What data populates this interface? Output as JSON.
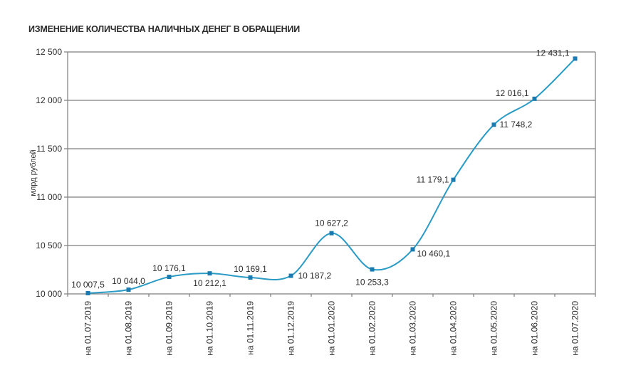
{
  "title": "ИЗМЕНЕНИЕ КОЛИЧЕСТВА НАЛИЧНЫХ ДЕНЕГ В ОБРАЩЕНИИ",
  "colors": {
    "line": "#2a9bc4",
    "marker": "#1a7bb0",
    "grid": "#7d7d7d"
  },
  "chart_data": {
    "type": "line",
    "title": "ИЗМЕНЕНИЕ КОЛИЧЕСТВА НАЛИЧНЫХ ДЕНЕГ В ОБРАЩЕНИИ",
    "xlabel": "",
    "ylabel": "млрд рублей",
    "ylim": [
      10000,
      12500
    ],
    "yticks": [
      10000,
      10500,
      11000,
      11500,
      12000,
      12500
    ],
    "ytick_labels": [
      "10 000",
      "10 500",
      "11 000",
      "11 500",
      "12 000",
      "12 500"
    ],
    "grid": true,
    "smooth": true,
    "categories": [
      "на 01.07.2019",
      "на 01.08.2019",
      "на 01.09.2019",
      "на 01.10.2019",
      "на 01.11.2019",
      "на 01.12.2019",
      "на 01.01.2020",
      "на 01.02.2020",
      "на 01.03.2020",
      "на 01.04.2020",
      "на 01.05.2020",
      "на 01.06.2020",
      "на 01.07.2020"
    ],
    "values": [
      10007.5,
      10044.0,
      10176.1,
      10212.1,
      10169.1,
      10187.2,
      10627.2,
      10253.3,
      10460.1,
      11179.1,
      11748.2,
      12016.1,
      12431.1
    ],
    "value_labels": [
      "10 007,5",
      "10 044,0",
      "10 176,1",
      "10 212,1",
      "10 169,1",
      "10 187,2",
      "10 627,2",
      "10 253,3",
      "10 460,1",
      "11 179,1",
      "11 748,2",
      "12 016,1",
      "12 431,1"
    ],
    "label_pos": [
      [
        0,
        -8,
        "middle"
      ],
      [
        0,
        -8,
        "middle"
      ],
      [
        0,
        -8,
        "middle"
      ],
      [
        0,
        18,
        "middle"
      ],
      [
        0,
        -8,
        "middle"
      ],
      [
        10,
        4,
        "start"
      ],
      [
        0,
        -10,
        "middle"
      ],
      [
        0,
        22,
        "middle"
      ],
      [
        6,
        10,
        "start"
      ],
      [
        -6,
        4,
        "end"
      ],
      [
        8,
        4,
        "start"
      ],
      [
        -8,
        -4,
        "end"
      ],
      [
        -8,
        -4,
        "end"
      ]
    ]
  }
}
